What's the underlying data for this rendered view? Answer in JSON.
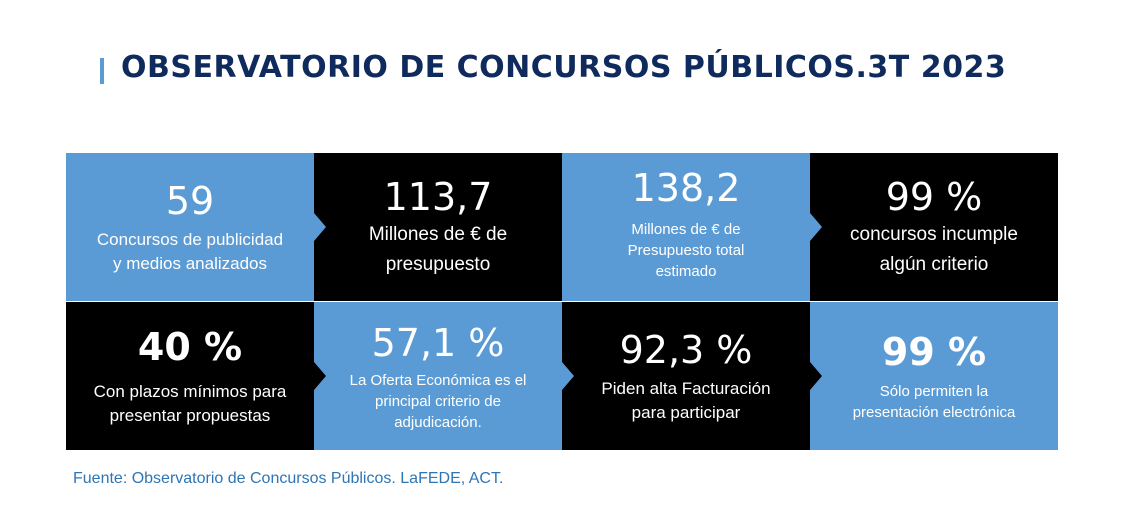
{
  "title": "OBSERVATORIO DE CONCURSOS PÚBLICOS.3T 2023",
  "colors": {
    "blue": "#5b9bd5",
    "black": "#000000",
    "title": "#0f2a5c",
    "source": "#2e75b6"
  },
  "tiles": [
    {
      "value": "59",
      "line1": "Concursos de publicidad",
      "line2": "y medios analizados",
      "line3": ""
    },
    {
      "value": "113,7",
      "line1": "Millones de € de",
      "line2": "presupuesto",
      "line3": ""
    },
    {
      "value": "138,2",
      "line1": "Millones de € de",
      "line2": "Presupuesto total",
      "line3": "estimado"
    },
    {
      "value": "99 %",
      "line1": "concursos incumple",
      "line2": "algún criterio",
      "line3": ""
    },
    {
      "value": "40 %",
      "line1": "Con plazos mínimos para",
      "line2": "presentar propuestas",
      "line3": ""
    },
    {
      "value": "57,1 %",
      "line1": "La Oferta Económica es el",
      "line2": "principal criterio de",
      "line3": "adjudicación."
    },
    {
      "value": "92,3 %",
      "line1": "Piden alta Facturación",
      "line2": "para participar",
      "line3": ""
    },
    {
      "value": "99 %",
      "line1": "Sólo permiten la",
      "line2": "presentación electrónica",
      "line3": ""
    }
  ],
  "source": "Fuente: Observatorio de Concursos Públicos. LaFEDE, ACT."
}
